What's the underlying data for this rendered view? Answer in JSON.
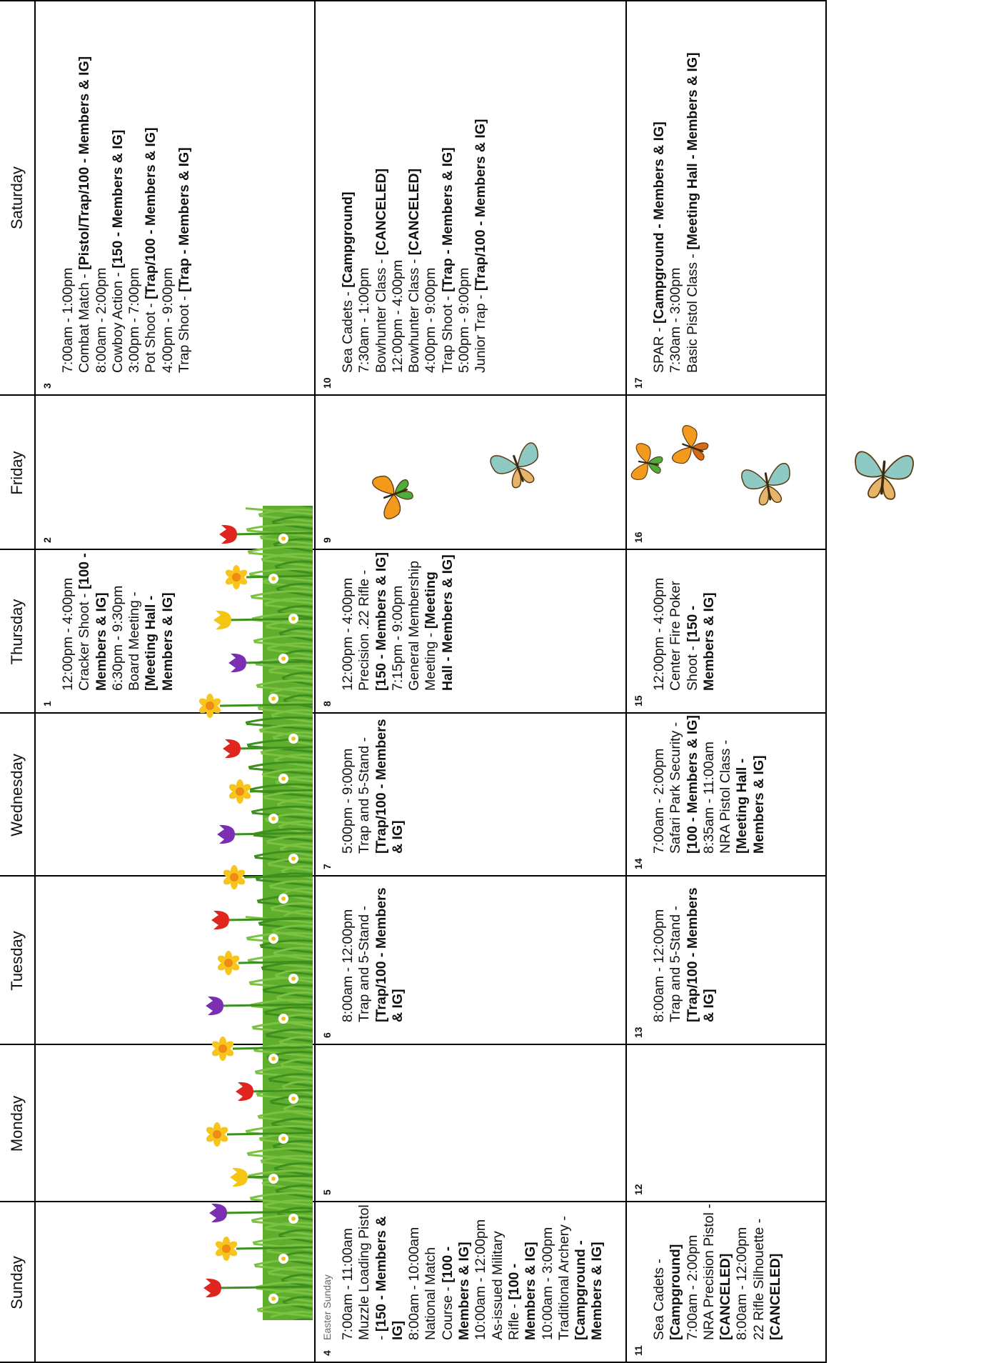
{
  "calendar": {
    "days_of_week": [
      "Sunday",
      "Monday",
      "Tuesday",
      "Wednesday",
      "Thursday",
      "Friday",
      "Saturday"
    ],
    "weeks": [
      [
        {
          "date": "",
          "note": "",
          "events": []
        },
        {
          "date": "",
          "note": "",
          "events": []
        },
        {
          "date": "",
          "note": "",
          "events": []
        },
        {
          "date": "",
          "note": "",
          "events": []
        },
        {
          "date": "1",
          "note": "",
          "events": [
            {
              "time": "12:00pm - 4:00pm",
              "name": "Cracker Shoot",
              "loc": "[100 - Members & IG]"
            },
            {
              "time": "6:30pm - 9:30pm",
              "name": "Board Meeting",
              "loc": "[Meeting Hall - Members & IG]"
            }
          ]
        },
        {
          "date": "2",
          "note": "",
          "events": []
        },
        {
          "date": "3",
          "note": "",
          "events": [
            {
              "time": "7:00am - 1:00pm",
              "name": "Combat Match",
              "loc": "[Pistol/Trap/100 - Members & IG]"
            },
            {
              "time": "8:00am - 2:00pm",
              "name": "Cowboy Action",
              "loc": "[150 - Members & IG]"
            },
            {
              "time": "3:00pm - 7:00pm",
              "name": "Pot Shoot",
              "loc": "[Trap/100 - Members & IG]"
            },
            {
              "time": "4:00pm - 9:00pm",
              "name": "Trap Shoot",
              "loc": "[Trap - Members & IG]"
            }
          ]
        }
      ],
      [
        {
          "date": "4",
          "note": "Easter Sunday",
          "events": [
            {
              "time": "7:00am - 11:00am",
              "name": "Muzzle Loading Pistol",
              "loc": "[150 - Members & IG]"
            },
            {
              "time": "8:00am - 10:00am",
              "name": "National Match Course",
              "loc": "[100 - Members & IG]"
            },
            {
              "time": "10:00am - 12:00pm",
              "name": "As-issued Military Rifle",
              "loc": "[100 - Members & IG]"
            },
            {
              "time": "10:00am - 3:00pm",
              "name": "Traditional Archery",
              "loc": "[Campground - Members & IG]"
            }
          ]
        },
        {
          "date": "5",
          "note": "",
          "events": []
        },
        {
          "date": "6",
          "note": "",
          "events": [
            {
              "time": "8:00am - 12:00pm",
              "name": "Trap and 5-Stand",
              "loc": "[Trap/100 - Members & IG]"
            }
          ]
        },
        {
          "date": "7",
          "note": "",
          "events": [
            {
              "time": "5:00pm - 9:00pm",
              "name": "Trap and 5-Stand",
              "loc": "[Trap/100 - Members & IG]"
            }
          ]
        },
        {
          "date": "8",
          "note": "",
          "events": [
            {
              "time": "12:00pm - 4:00pm",
              "name": "Precision .22 Rifle",
              "loc": "[150 - Members & IG]"
            },
            {
              "time": "7:15pm - 9:00pm",
              "name": "General Membership Meeting",
              "loc": "[Meeting Hall - Members & IG]"
            }
          ]
        },
        {
          "date": "9",
          "note": "",
          "events": []
        },
        {
          "date": "10",
          "note": "",
          "events": [
            {
              "time": "",
              "name": "Sea Cadets",
              "loc": "[Campground]"
            },
            {
              "time": "7:30am - 1:00pm",
              "name": "Bowhunter Class",
              "loc": "[CANCELED]"
            },
            {
              "time": "12:00pm - 4:00pm",
              "name": "Bowhunter Class",
              "loc": "[CANCELED]"
            },
            {
              "time": "4:00pm - 9:00pm",
              "name": "Trap Shoot",
              "loc": "[Trap - Members & IG]"
            },
            {
              "time": "5:00pm - 9:00pm",
              "name": "Junior Trap",
              "loc": "[Trap/100 - Members & IG]"
            }
          ]
        }
      ],
      [
        {
          "date": "11",
          "note": "",
          "events": [
            {
              "time": "",
              "name": "Sea Cadets",
              "loc": "[Campground]"
            },
            {
              "time": "7:00am - 2:00pm",
              "name": "NRA Precision Pistol",
              "loc": "[CANCELED]"
            },
            {
              "time": "8:00am - 12:00pm",
              "name": "22 Rifle Silhouette",
              "loc": "[CANCELED]"
            }
          ]
        },
        {
          "date": "12",
          "note": "",
          "events": []
        },
        {
          "date": "13",
          "note": "",
          "events": [
            {
              "time": "8:00am - 12:00pm",
              "name": "Trap and 5-Stand",
              "loc": "[Trap/100 - Members & IG]"
            }
          ]
        },
        {
          "date": "14",
          "note": "",
          "events": [
            {
              "time": "7:00am - 2:00pm",
              "name": "Safari Park Security",
              "loc": "[100 - Members & IG]"
            },
            {
              "time": "8:35am - 11:00am",
              "name": "NRA Pistol Class",
              "loc": "[Meeting Hall - Members & IG]"
            }
          ]
        },
        {
          "date": "15",
          "note": "",
          "events": [
            {
              "time": "12:00pm - 4:00pm",
              "name": "Center Fire Poker Shoot",
              "loc": "[150 - Members & IG]"
            }
          ]
        },
        {
          "date": "16",
          "note": "",
          "events": []
        },
        {
          "date": "17",
          "note": "",
          "events": [
            {
              "time": "",
              "name": "SPAR",
              "loc": "[Campground - Members & IG]"
            },
            {
              "time": "7:30am - 3:00pm",
              "name": "Basic Pistol Class",
              "loc": "[Meeting Hall - Members & IG]"
            }
          ]
        }
      ]
    ]
  },
  "decorations": {
    "flower_banner": "tulip-daffodil-grass-illustration",
    "butterflies": "butterfly-illustration"
  },
  "colors": {
    "grid_line": "#000000",
    "text": "#111111",
    "note_text": "#666666",
    "grass": "#5fae2e",
    "tulip_red": "#e0251f",
    "tulip_purple": "#7a2fb3",
    "tulip_yellow": "#f5c514",
    "daffodil": "#f7c61e",
    "butterfly_orange": "#f39a1c",
    "butterfly_teal": "#8fc9c4"
  }
}
